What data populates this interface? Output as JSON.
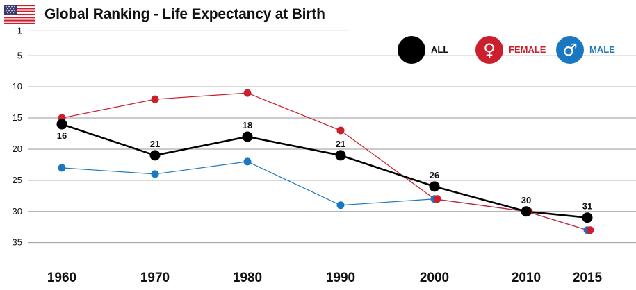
{
  "header": {
    "title": "Global Ranking - Life Expectancy at Birth",
    "flag_icon": "us-flag-icon"
  },
  "legend": {
    "all": {
      "label": "ALL",
      "color": "#000000"
    },
    "female": {
      "label": "FEMALE",
      "color": "#cc1f2d",
      "icon": "female-symbol-icon",
      "symbol": "♀"
    },
    "male": {
      "label": "MALE",
      "color": "#1a78c2",
      "icon": "male-symbol-icon",
      "symbol": "♂"
    }
  },
  "chart_data": {
    "type": "line",
    "title": "Global Ranking - Life Expectancy at Birth",
    "x": [
      1960,
      1970,
      1980,
      1990,
      2000,
      2010,
      2015
    ],
    "x_labels": [
      "1960",
      "1970",
      "1980",
      "1990",
      "2000",
      "2010",
      "2015"
    ],
    "y_ticks": [
      1,
      5,
      10,
      15,
      20,
      25,
      30,
      35
    ],
    "ylim": [
      1,
      35
    ],
    "y_inverted": true,
    "grid": true,
    "legend_position": "top-right",
    "series": [
      {
        "name": "FEMALE",
        "color": "#cc1f2d",
        "values": [
          15,
          12,
          11,
          17,
          28,
          30,
          33
        ]
      },
      {
        "name": "MALE",
        "color": "#1a78c2",
        "values": [
          23,
          24,
          22,
          29,
          28,
          30,
          33
        ]
      },
      {
        "name": "ALL",
        "color": "#000000",
        "values": [
          16,
          21,
          18,
          21,
          26,
          30,
          31
        ],
        "data_labels": [
          "16",
          "21",
          "18",
          "21",
          "26",
          "30",
          "31"
        ]
      }
    ]
  }
}
